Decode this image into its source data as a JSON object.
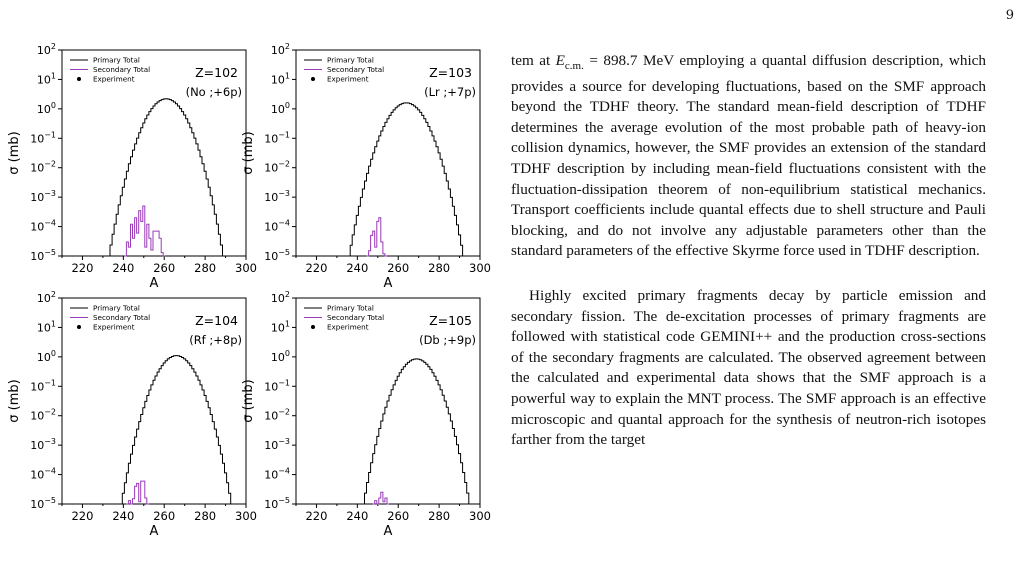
{
  "page": {
    "number": "9"
  },
  "body_text": {
    "paragraph1": "tem at E_c.m. = 898.7 MeV employing a quantal diffusion description, which provides a source for developing fluctuations, based on the SMF approach beyond the TDHF theory. The standard mean-field description of TDHF determines the average evolution of the most probable path of heavy-ion collision dynamics, however, the SMF provides an extension of the standard TDHF description by including mean-field fluctuations consistent with the fluctuation-dissipation theorem of non-equilibrium statistical mechanics. Transport coefficients include quantal effects due to shell structure and Pauli blocking, and do not involve any adjustable parameters other than the standard parameters of the effective Skyrme force used in TDHF description.",
    "paragraph2": "Highly excited primary fragments decay by particle emission and secondary fission. The de-excitation processes of primary fragments are followed with statistical code GEMINI++ and the production cross-sections of the secondary fragments are calculated. The observed agreement between the calculated and experimental data shows that the SMF approach is a powerful way to explain the MNT process. The SMF approach is an effective microscopic and quantal approach for the synthesis of neutron-rich isotopes farther from the target"
  },
  "chart_data": [
    {
      "type": "line",
      "panel": "Z=102",
      "annotation_z": "Z=102",
      "annotation_iso": "(No ;+6p)",
      "xlabel": "A",
      "ylabel": "σ (mb)",
      "yscale": "log",
      "xlim": [
        210,
        300
      ],
      "ylim": [
        1e-05,
        100
      ],
      "xticks": [
        "220",
        "240",
        "260",
        "280",
        "300"
      ],
      "yticks": [
        "10^-5",
        "10^-4",
        "10^-3",
        "10^-2",
        "10^-1",
        "10^0",
        "10^1",
        "10^2"
      ],
      "legend": [
        "Primary Total",
        "Secondary Total",
        "Experiment"
      ],
      "series": [
        {
          "name": "Primary Total",
          "color": "#000000",
          "peak_A": 261,
          "peak_sigma": 2.2,
          "range_A": [
            233,
            289
          ]
        },
        {
          "name": "Secondary Total",
          "color": "#9a3bb8",
          "points": [
            [
              241,
              1e-05
            ],
            [
              242,
              3e-05
            ],
            [
              243,
              2e-05
            ],
            [
              244,
              0.00012
            ],
            [
              245,
              4e-05
            ],
            [
              246,
              0.0002
            ],
            [
              247,
              6e-05
            ],
            [
              248,
              0.00035
            ],
            [
              249,
              0.00015
            ],
            [
              250,
              0.0005
            ],
            [
              251,
              2e-05
            ],
            [
              252,
              0.00012
            ],
            [
              253,
              4e-05
            ],
            [
              254,
              1.6e-05
            ],
            [
              255,
              7e-05
            ],
            [
              256,
              7e-05
            ],
            [
              257,
              7e-05
            ],
            [
              258,
              4e-05
            ],
            [
              259,
              1.3e-05
            ],
            [
              260,
              1e-05
            ]
          ]
        }
      ]
    },
    {
      "type": "line",
      "panel": "Z=103",
      "annotation_z": "Z=103",
      "annotation_iso": "(Lr ;+7p)",
      "xlabel": "A",
      "ylabel": "σ (mb)",
      "yscale": "log",
      "xlim": [
        210,
        300
      ],
      "ylim": [
        1e-05,
        100
      ],
      "xticks": [
        "220",
        "240",
        "260",
        "280",
        "300"
      ],
      "yticks": [
        "10^-5",
        "10^-4",
        "10^-3",
        "10^-2",
        "10^-1",
        "10^0",
        "10^1",
        "10^2"
      ],
      "legend": [
        "Primary Total",
        "Secondary Total",
        "Experiment"
      ],
      "series": [
        {
          "name": "Primary Total",
          "color": "#000000",
          "peak_A": 264,
          "peak_sigma": 1.6,
          "range_A": [
            236,
            292
          ]
        },
        {
          "name": "Secondary Total",
          "color": "#9a3bb8",
          "points": [
            [
              245,
              1e-05
            ],
            [
              246,
              1.5e-05
            ],
            [
              247,
              5e-05
            ],
            [
              248,
              7e-05
            ],
            [
              249,
              2e-05
            ],
            [
              250,
              0.00015
            ],
            [
              251,
              0.0002
            ],
            [
              252,
              3e-05
            ],
            [
              253,
              1.2e-05
            ],
            [
              254,
              1e-05
            ]
          ]
        }
      ]
    },
    {
      "type": "line",
      "panel": "Z=104",
      "annotation_z": "Z=104",
      "annotation_iso": "(Rf ;+8p)",
      "xlabel": "A",
      "ylabel": "σ (mb)",
      "yscale": "log",
      "xlim": [
        210,
        300
      ],
      "ylim": [
        1e-05,
        100
      ],
      "xticks": [
        "220",
        "240",
        "260",
        "280",
        "300"
      ],
      "yticks": [
        "10^-5",
        "10^-4",
        "10^-3",
        "10^-2",
        "10^-1",
        "10^0",
        "10^1",
        "10^2"
      ],
      "legend": [
        "Primary Total",
        "Secondary Total",
        "Experiment"
      ],
      "series": [
        {
          "name": "Primary Total",
          "color": "#000000",
          "peak_A": 266,
          "peak_sigma": 1.1,
          "range_A": [
            239,
            293
          ]
        },
        {
          "name": "Secondary Total",
          "color": "#9a3bb8",
          "points": [
            [
              242,
              1e-05
            ],
            [
              243,
              1.3e-05
            ],
            [
              244,
              1e-05
            ],
            [
              245,
              1.5e-05
            ],
            [
              246,
              4e-05
            ],
            [
              247,
              5e-05
            ],
            [
              248,
              1.2e-05
            ],
            [
              249,
              6e-05
            ],
            [
              250,
              6e-05
            ],
            [
              251,
              1.6e-05
            ],
            [
              252,
              1e-05
            ]
          ]
        }
      ]
    },
    {
      "type": "line",
      "panel": "Z=105",
      "annotation_z": "Z=105",
      "annotation_iso": "(Db ;+9p)",
      "xlabel": "A",
      "ylabel": "σ (mb)",
      "yscale": "log",
      "xlim": [
        210,
        300
      ],
      "ylim": [
        1e-05,
        100
      ],
      "xticks": [
        "220",
        "240",
        "260",
        "280",
        "300"
      ],
      "yticks": [
        "10^-5",
        "10^-4",
        "10^-3",
        "10^-2",
        "10^-1",
        "10^0",
        "10^1",
        "10^2"
      ],
      "legend": [
        "Primary Total",
        "Secondary Total",
        "Experiment"
      ],
      "series": [
        {
          "name": "Primary Total",
          "color": "#000000",
          "peak_A": 269,
          "peak_sigma": 0.85,
          "range_A": [
            243,
            295
          ]
        },
        {
          "name": "Secondary Total",
          "color": "#9a3bb8",
          "points": [
            [
              248,
              1e-05
            ],
            [
              249,
              1.3e-05
            ],
            [
              250,
              1e-05
            ],
            [
              251,
              1.6e-05
            ],
            [
              252,
              2.5e-05
            ],
            [
              253,
              1.2e-05
            ],
            [
              254,
              1.6e-05
            ],
            [
              255,
              1e-05
            ]
          ]
        }
      ]
    }
  ]
}
